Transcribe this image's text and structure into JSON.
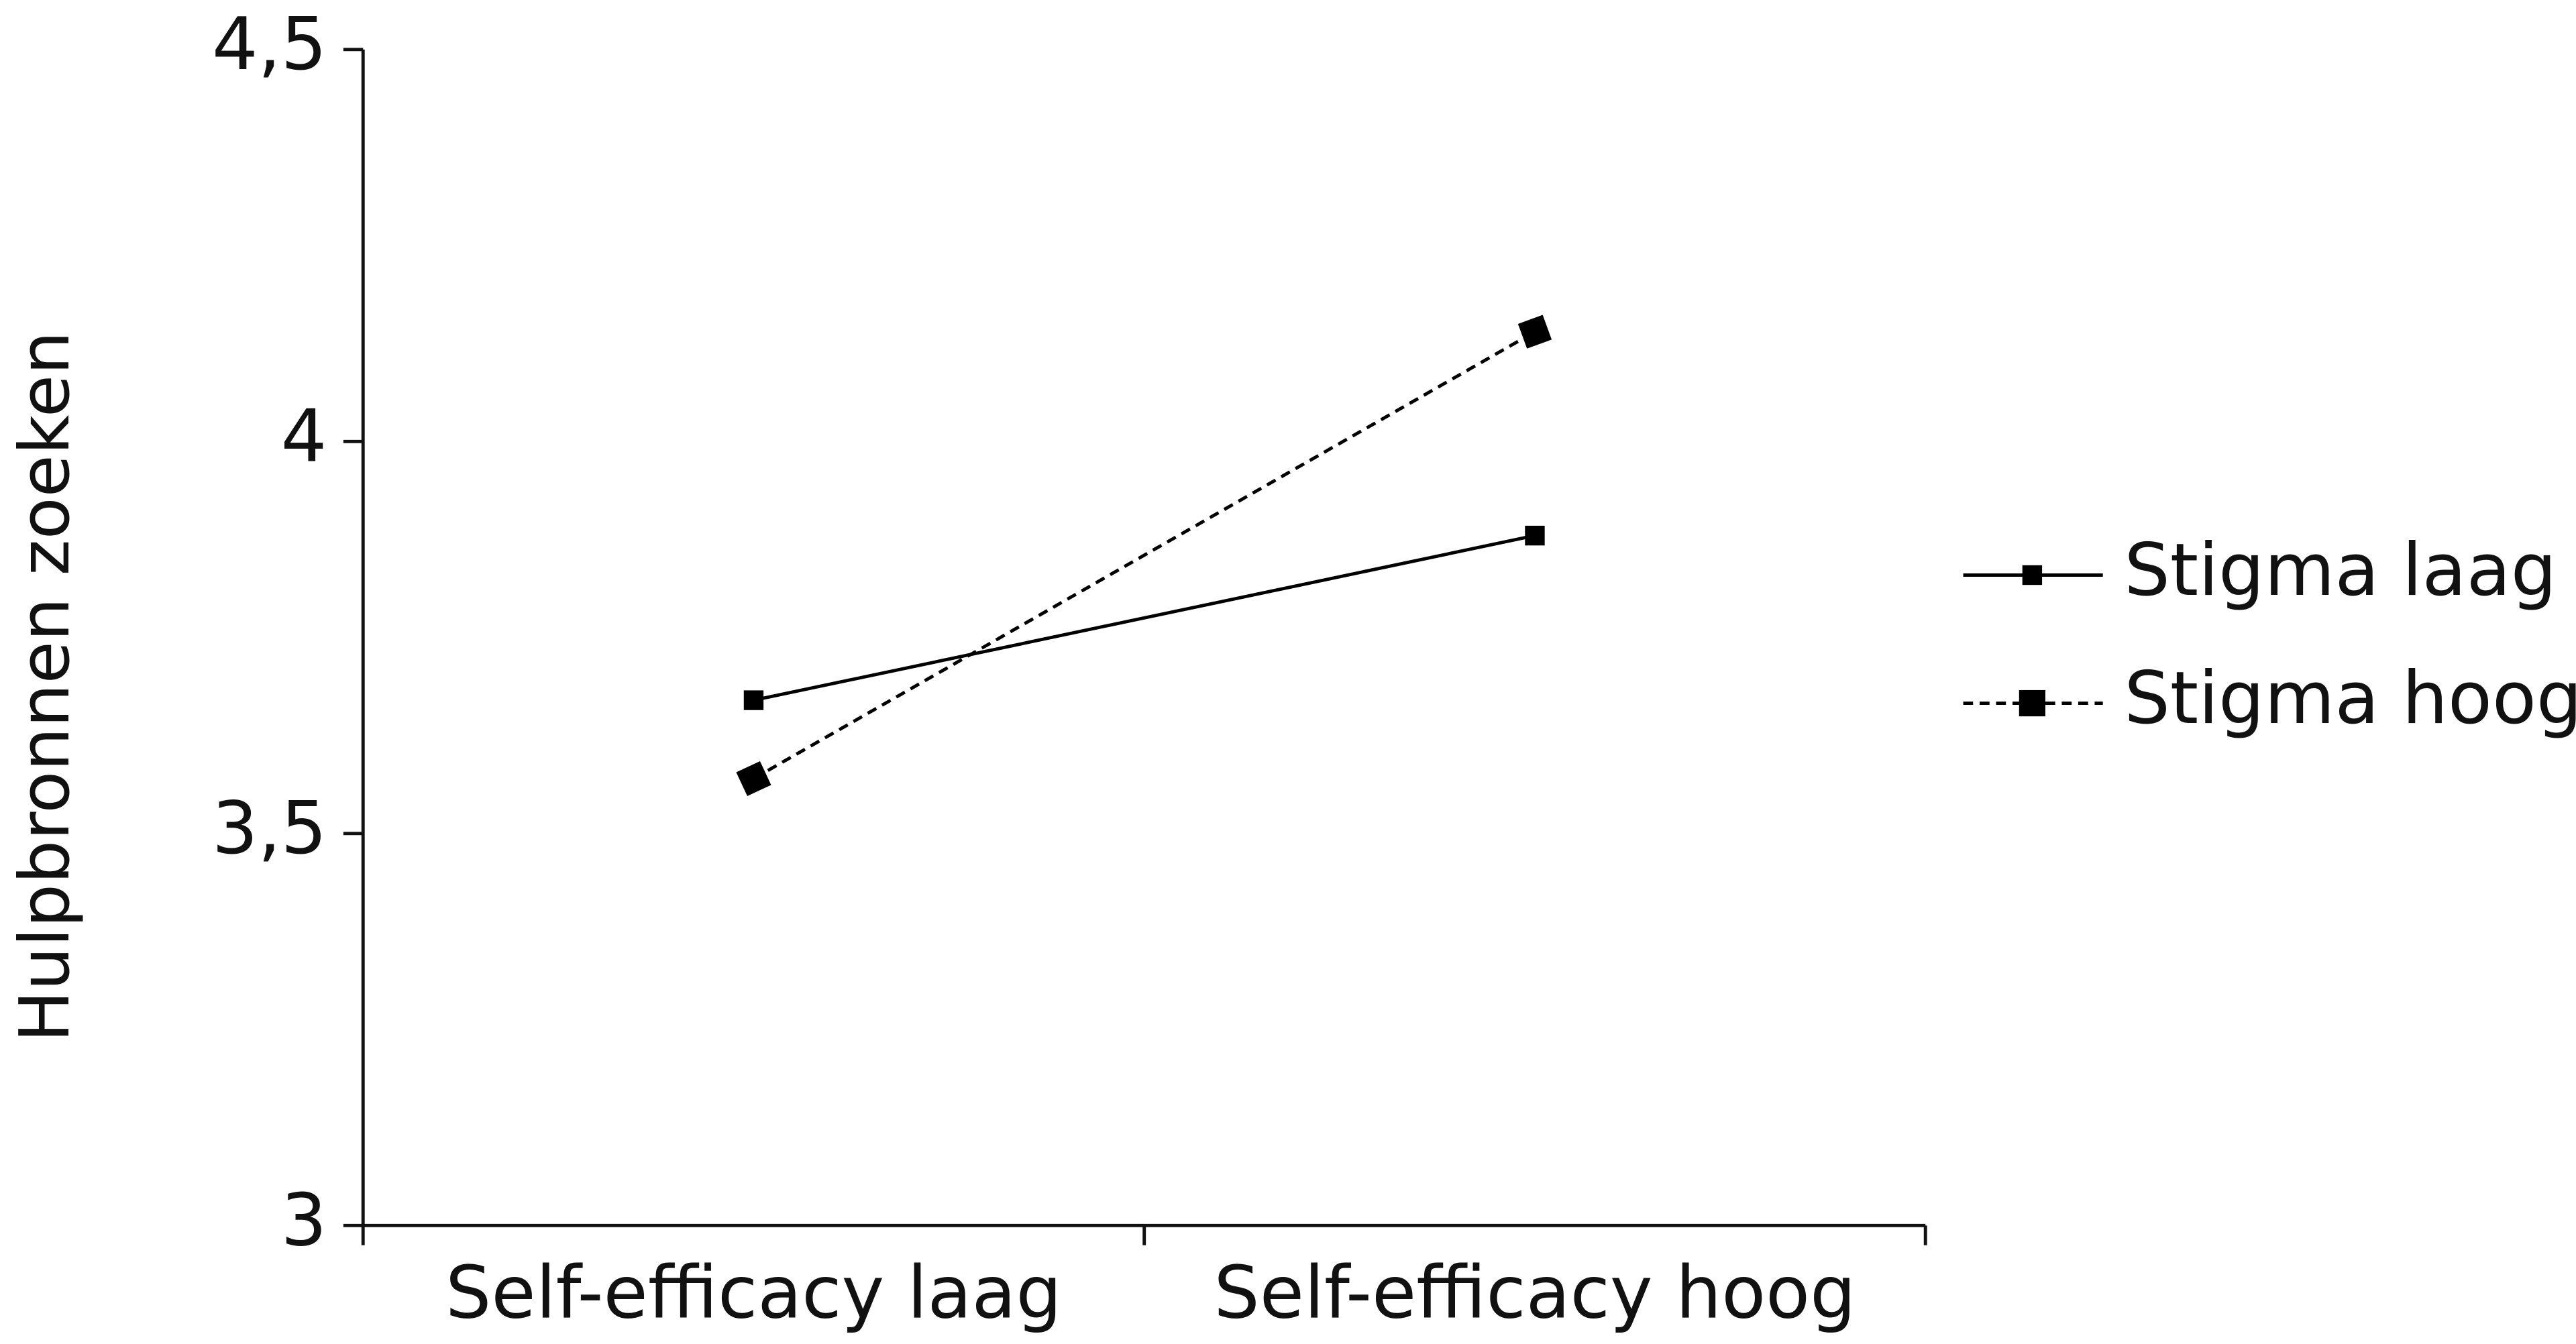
{
  "chart_data": {
    "type": "line",
    "y_label": "Hulpbronnen zoeken",
    "categories": [
      "Self-efficacy laag",
      "Self-efficacy hoog"
    ],
    "series": [
      {
        "name": "Stigma laag",
        "color": "#000000",
        "dashed": false,
        "values": [
          3.67,
          3.88
        ]
      },
      {
        "name": "Stigma hoog",
        "color": "#000000",
        "dashed": true,
        "values": [
          3.57,
          4.14
        ]
      }
    ],
    "ylim": [
      3,
      4.5
    ],
    "yticks": [
      3,
      {
        "value": 3.5,
        "label": "3,5"
      },
      4,
      {
        "value": 4.5,
        "label": "4,5"
      }
    ],
    "grid": false,
    "legend": "right"
  }
}
